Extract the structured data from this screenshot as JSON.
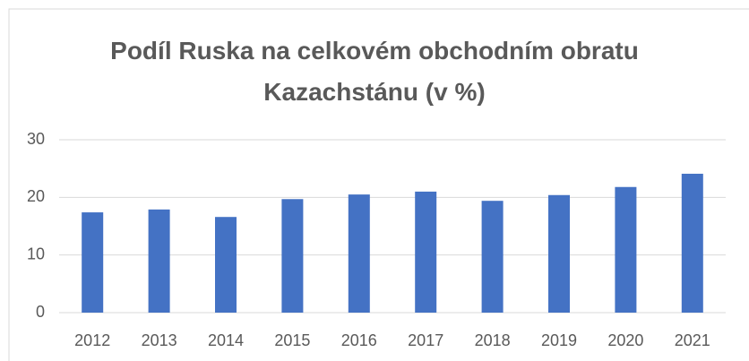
{
  "chart_data": {
    "type": "bar",
    "title": "Podíl Ruska na celkovém obchodním obratu Kazachstánu (v %)",
    "categories": [
      "2012",
      "2013",
      "2014",
      "2015",
      "2016",
      "2017",
      "2018",
      "2019",
      "2020",
      "2021"
    ],
    "values": [
      17.4,
      17.9,
      16.6,
      19.7,
      20.5,
      21.0,
      19.4,
      20.4,
      21.8,
      24.1
    ],
    "color": "#4472c4",
    "ylim": [
      0,
      30
    ],
    "yticks": [
      0,
      10,
      20,
      30
    ],
    "grid": true
  }
}
